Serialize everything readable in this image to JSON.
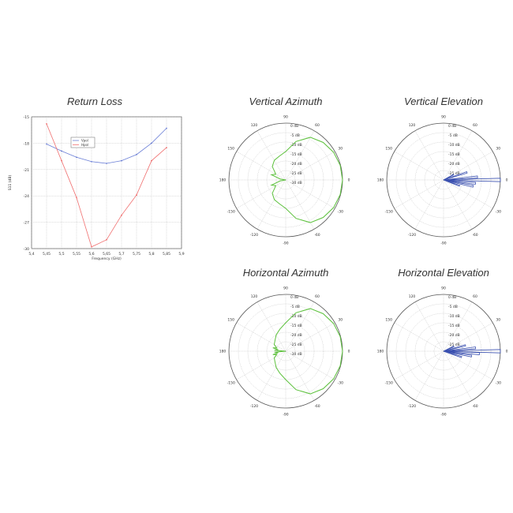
{
  "chart_data": [
    {
      "type": "line",
      "title": "Return Loss",
      "xlabel": "Frequency (GHz)",
      "ylabel": "S11 (dB)",
      "xlim": [
        5.4,
        5.9
      ],
      "ylim": [
        -30,
        -15
      ],
      "xticks": [
        "5,4",
        "5,45",
        "5,5",
        "5,55",
        "5,6",
        "5,65",
        "5,7",
        "5,75",
        "5,8",
        "5,85",
        "5,9"
      ],
      "yticks": [
        "-15",
        "-18",
        "-21",
        "-24",
        "-27",
        "-30"
      ],
      "x": [
        5.45,
        5.5,
        5.55,
        5.6,
        5.65,
        5.7,
        5.75,
        5.8,
        5.85
      ],
      "series": [
        {
          "name": "Vpol",
          "color": "#6b7fd6",
          "values": [
            -18.1,
            -18.9,
            -19.6,
            -20.1,
            -20.3,
            -20.0,
            -19.3,
            -18.0,
            -16.3
          ]
        },
        {
          "name": "Hpol",
          "color": "#f07070",
          "values": [
            -15.8,
            -20.0,
            -24.2,
            -29.8,
            -29.0,
            -26.2,
            -23.9,
            -20.0,
            -18.5
          ]
        }
      ],
      "grid": true,
      "legend": "top-center"
    },
    {
      "type": "polar",
      "title": "Vertical Azimuth",
      "color": "#5cc13c",
      "rlabels": [
        "0 dB",
        "-5 dB",
        "-10 dB",
        "-15 dB",
        "-20 dB",
        "-25 dB",
        "-30 dB"
      ],
      "rmin": -30,
      "angles": [
        0,
        15,
        30,
        45,
        60,
        75,
        90,
        105,
        120,
        135,
        150,
        160,
        170,
        180
      ],
      "gains": [
        0,
        -0.2,
        -0.8,
        -2,
        -4,
        -9,
        -15,
        -17,
        -18,
        -20,
        -24,
        -22,
        -27,
        -30
      ]
    },
    {
      "type": "polar",
      "title": "Vertical Elevation",
      "color": "#3a50b0",
      "rlabels": [
        "0 dB",
        "-5 dB",
        "-10 dB",
        "-15 dB",
        "-20 dB",
        "-25 dB"
      ],
      "rmin": -30,
      "lobes": [
        {
          "angle": 0,
          "gain": 0
        },
        {
          "angle": 5,
          "gain": -12
        },
        {
          "angle": -6,
          "gain": -13
        },
        {
          "angle": -12,
          "gain": -14
        },
        {
          "angle": 18,
          "gain": -17
        },
        {
          "angle": -20,
          "gain": -21
        },
        {
          "angle": 28,
          "gain": -24
        }
      ]
    },
    {
      "type": "polar",
      "title": "Horizontal Azimuth",
      "color": "#5cc13c",
      "rlabels": [
        "0 dB",
        "-5 dB",
        "-10 dB",
        "-15 dB",
        "-20 dB",
        "-25 dB",
        "-30 dB"
      ],
      "rmin": -30,
      "angles": [
        0,
        15,
        30,
        45,
        60,
        75,
        90,
        105,
        120,
        135,
        150,
        160,
        165,
        170,
        175,
        180
      ],
      "gains": [
        0,
        -0.2,
        -0.8,
        -2,
        -4,
        -9,
        -15,
        -18,
        -20,
        -22,
        -23,
        -25,
        -23,
        -26,
        -24,
        -30
      ]
    },
    {
      "type": "polar",
      "title": "Horizontal Elevation",
      "color": "#3a50b0",
      "rlabels": [
        "0 dB",
        "-5 dB",
        "-10 dB",
        "-15 dB",
        "-20 dB",
        "-25 dB"
      ],
      "rmin": -30,
      "lobes": [
        {
          "angle": 0,
          "gain": 0
        },
        {
          "angle": -4,
          "gain": -11
        },
        {
          "angle": 6,
          "gain": -13
        },
        {
          "angle": -10,
          "gain": -15
        },
        {
          "angle": 15,
          "gain": -18
        },
        {
          "angle": -18,
          "gain": -20
        },
        {
          "angle": 25,
          "gain": -24
        }
      ]
    }
  ],
  "angle_labels": [
    "0",
    "30",
    "60",
    "90",
    "120",
    "150",
    "180",
    "-150",
    "-120",
    "-90",
    "-60",
    "-30"
  ]
}
